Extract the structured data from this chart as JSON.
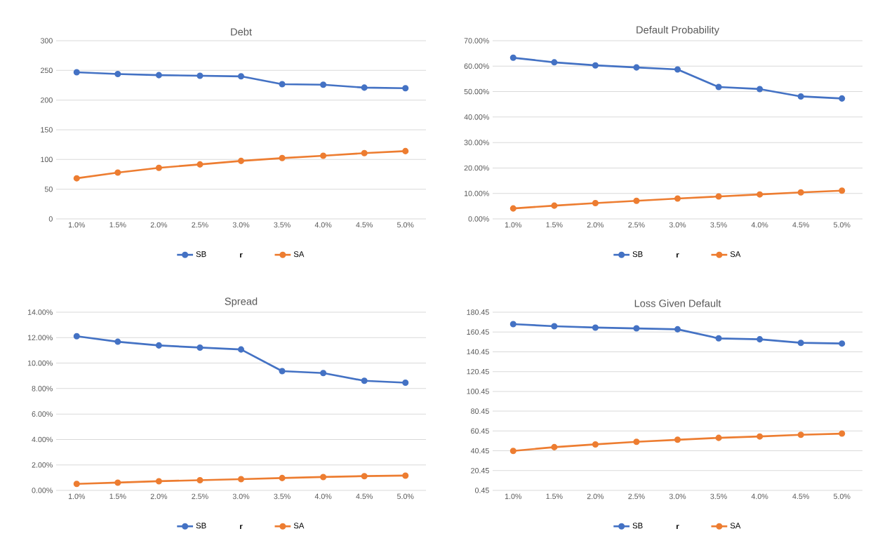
{
  "chart_data": [
    {
      "type": "line",
      "title": "Debt",
      "xlabel": "r",
      "categories": [
        "1.0%",
        "1.5%",
        "2.0%",
        "2.5%",
        "3.0%",
        "3.5%",
        "4.0%",
        "4.5%",
        "5.0%"
      ],
      "series": [
        {
          "name": "SB",
          "color": "#4472c4",
          "values": [
            246.8,
            243.9,
            242,
            241,
            240,
            226.8,
            225.9,
            221,
            220
          ]
        },
        {
          "name": "SA",
          "color": "#ed7d31",
          "values": [
            68.3,
            78,
            85.9,
            91.7,
            97.6,
            102.4,
            106.3,
            110.7,
            114.1
          ]
        }
      ],
      "ylim": [
        0,
        300
      ],
      "yticks": [
        0,
        50,
        100,
        150,
        200,
        250,
        300
      ],
      "grid": "y",
      "legend": "bottom",
      "marker": "circle"
    },
    {
      "type": "line",
      "title": "Default Probability",
      "xlabel": "r",
      "categories": [
        "1.0%",
        "1.5%",
        "2.0%",
        "2.5%",
        "3.0%",
        "3.5%",
        "4.0%",
        "4.5%",
        "5.0%"
      ],
      "series": [
        {
          "name": "SB",
          "color": "#4472c4",
          "values": [
            63.3,
            61.5,
            60.3,
            59.5,
            58.7,
            51.8,
            51.0,
            48.1,
            47.3
          ]
        },
        {
          "name": "SA",
          "color": "#ed7d31",
          "values": [
            4.1,
            5.2,
            6.2,
            7.1,
            8.0,
            8.8,
            9.6,
            10.4,
            11.1
          ]
        }
      ],
      "ylim": [
        0,
        70
      ],
      "yticks": [
        {
          "value": 0,
          "label": "0.00%"
        },
        {
          "value": 10,
          "label": "10.00%"
        },
        {
          "value": 20,
          "label": "20.00%"
        },
        {
          "value": 30,
          "label": "30.00%"
        },
        {
          "value": 40,
          "label": "40.00%"
        },
        {
          "value": 50,
          "label": "50.00%"
        },
        {
          "value": 60,
          "label": "60.00%"
        },
        {
          "value": 70,
          "label": "70.00%"
        }
      ],
      "grid": "y",
      "legend": "bottom",
      "marker": "circle"
    },
    {
      "type": "line",
      "title": "Spread",
      "xlabel": "r",
      "categories": [
        "1.0%",
        "1.5%",
        "2.0%",
        "2.5%",
        "3.0%",
        "3.5%",
        "4.0%",
        "4.5%",
        "5.0%"
      ],
      "series": [
        {
          "name": "SB",
          "color": "#4472c4",
          "values": [
            12.11,
            11.68,
            11.39,
            11.22,
            11.07,
            9.37,
            9.22,
            8.61,
            8.46
          ]
        },
        {
          "name": "SA",
          "color": "#ed7d31",
          "values": [
            0.51,
            0.61,
            0.72,
            0.8,
            0.88,
            0.97,
            1.05,
            1.12,
            1.16
          ]
        }
      ],
      "ylim": [
        0,
        14
      ],
      "yticks": [
        {
          "value": 0,
          "label": "0.00%"
        },
        {
          "value": 2,
          "label": "2.00%"
        },
        {
          "value": 4,
          "label": "4.00%"
        },
        {
          "value": 6,
          "label": "6.00%"
        },
        {
          "value": 8,
          "label": "8.00%"
        },
        {
          "value": 10,
          "label": "10.00%"
        },
        {
          "value": 12,
          "label": "12.00%"
        },
        {
          "value": 14,
          "label": "14.00%"
        }
      ],
      "grid": "y",
      "legend": "bottom",
      "marker": "circle"
    },
    {
      "type": "line",
      "title": "Loss Given Default",
      "xlabel": "r",
      "categories": [
        "1.0%",
        "1.5%",
        "2.0%",
        "2.5%",
        "3.0%",
        "3.5%",
        "4.0%",
        "4.5%",
        "5.0%"
      ],
      "series": [
        {
          "name": "SB",
          "color": "#4472c4",
          "values": [
            168.4,
            166.3,
            164.9,
            164.1,
            163.2,
            154.0,
            153.1,
            149.5,
            148.8
          ]
        },
        {
          "name": "SA",
          "color": "#ed7d31",
          "values": [
            40.3,
            44.1,
            46.9,
            49.5,
            51.6,
            53.5,
            54.9,
            56.6,
            57.8
          ]
        }
      ],
      "ylim": [
        0.45,
        180.45
      ],
      "yticks": [
        0.45,
        20.45,
        40.45,
        60.45,
        80.45,
        100.45,
        120.45,
        140.45,
        160.45,
        180.45
      ],
      "grid": "y",
      "legend": "bottom",
      "marker": "circle"
    }
  ]
}
